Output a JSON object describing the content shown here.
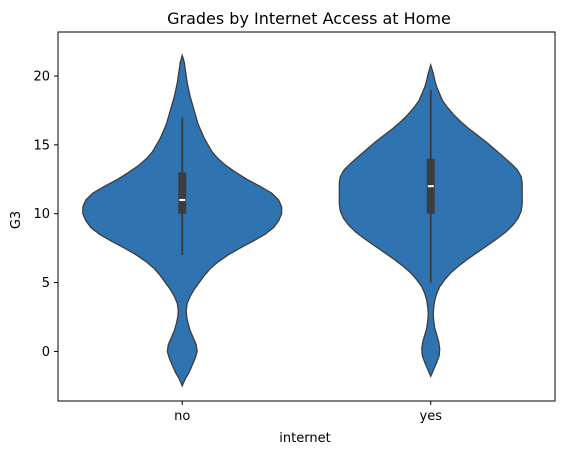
{
  "chart_data": {
    "type": "violin",
    "title": "Grades by Internet Access at Home",
    "xlabel": "internet",
    "ylabel": "G3",
    "categories": [
      "no",
      "yes"
    ],
    "ylim": [
      -3.6,
      23.2
    ],
    "yticks": [
      0,
      5,
      10,
      15,
      20
    ],
    "ytick_labels": [
      "0",
      "5",
      "10",
      "15",
      "20"
    ],
    "grid": false,
    "fill_color": "#2f74b0",
    "edge_color": "#3d3d3d",
    "violins": [
      {
        "category": "no",
        "extent": [
          -2.5,
          21.5
        ],
        "box": {
          "q1": 10,
          "median": 11,
          "q3": 13,
          "whisker_low": 7,
          "whisker_high": 17
        },
        "density": [
          [
            -2.5,
            0.0
          ],
          [
            -2.0,
            0.03
          ],
          [
            -1.5,
            0.07
          ],
          [
            -1.0,
            0.1
          ],
          [
            -0.5,
            0.13
          ],
          [
            0.0,
            0.15
          ],
          [
            0.5,
            0.14
          ],
          [
            1.0,
            0.11
          ],
          [
            1.5,
            0.08
          ],
          [
            2.0,
            0.06
          ],
          [
            2.5,
            0.045
          ],
          [
            3.0,
            0.04
          ],
          [
            3.5,
            0.05
          ],
          [
            4.0,
            0.08
          ],
          [
            4.5,
            0.12
          ],
          [
            5.0,
            0.17
          ],
          [
            5.5,
            0.22
          ],
          [
            6.0,
            0.28
          ],
          [
            6.5,
            0.36
          ],
          [
            7.0,
            0.46
          ],
          [
            7.5,
            0.58
          ],
          [
            8.0,
            0.71
          ],
          [
            8.5,
            0.83
          ],
          [
            9.0,
            0.92
          ],
          [
            9.5,
            0.97
          ],
          [
            10.0,
            1.0
          ],
          [
            10.5,
            1.0
          ],
          [
            11.0,
            0.97
          ],
          [
            11.5,
            0.9
          ],
          [
            12.0,
            0.78
          ],
          [
            12.5,
            0.65
          ],
          [
            13.0,
            0.54
          ],
          [
            13.5,
            0.44
          ],
          [
            14.0,
            0.36
          ],
          [
            14.5,
            0.3
          ],
          [
            15.0,
            0.26
          ],
          [
            15.5,
            0.22
          ],
          [
            16.0,
            0.19
          ],
          [
            16.5,
            0.16
          ],
          [
            17.0,
            0.14
          ],
          [
            17.5,
            0.12
          ],
          [
            18.0,
            0.1
          ],
          [
            18.5,
            0.08
          ],
          [
            19.0,
            0.065
          ],
          [
            19.5,
            0.05
          ],
          [
            20.0,
            0.04
          ],
          [
            20.5,
            0.03
          ],
          [
            21.0,
            0.02
          ],
          [
            21.5,
            0.0
          ]
        ]
      },
      {
        "category": "yes",
        "extent": [
          -1.8,
          20.8
        ],
        "box": {
          "q1": 10,
          "median": 12,
          "q3": 14,
          "whisker_low": 5,
          "whisker_high": 19
        },
        "density": [
          [
            -1.8,
            0.0
          ],
          [
            -1.3,
            0.03
          ],
          [
            -0.8,
            0.06
          ],
          [
            -0.3,
            0.085
          ],
          [
            0.2,
            0.09
          ],
          [
            0.7,
            0.08
          ],
          [
            1.2,
            0.06
          ],
          [
            1.7,
            0.04
          ],
          [
            2.2,
            0.03
          ],
          [
            2.7,
            0.025
          ],
          [
            3.2,
            0.03
          ],
          [
            3.7,
            0.04
          ],
          [
            4.2,
            0.06
          ],
          [
            4.7,
            0.09
          ],
          [
            5.2,
            0.14
          ],
          [
            5.7,
            0.2
          ],
          [
            6.2,
            0.28
          ],
          [
            6.7,
            0.37
          ],
          [
            7.2,
            0.47
          ],
          [
            7.7,
            0.57
          ],
          [
            8.2,
            0.67
          ],
          [
            8.7,
            0.76
          ],
          [
            9.2,
            0.83
          ],
          [
            9.7,
            0.88
          ],
          [
            10.2,
            0.91
          ],
          [
            10.7,
            0.92
          ],
          [
            11.2,
            0.92
          ],
          [
            11.7,
            0.92
          ],
          [
            12.2,
            0.92
          ],
          [
            12.7,
            0.91
          ],
          [
            13.2,
            0.87
          ],
          [
            13.7,
            0.8
          ],
          [
            14.2,
            0.72
          ],
          [
            14.7,
            0.64
          ],
          [
            15.2,
            0.56
          ],
          [
            15.7,
            0.47
          ],
          [
            16.2,
            0.38
          ],
          [
            16.7,
            0.3
          ],
          [
            17.2,
            0.23
          ],
          [
            17.7,
            0.17
          ],
          [
            18.2,
            0.12
          ],
          [
            18.7,
            0.09
          ],
          [
            19.2,
            0.06
          ],
          [
            19.7,
            0.04
          ],
          [
            20.2,
            0.025
          ],
          [
            20.8,
            0.0
          ]
        ]
      }
    ]
  }
}
